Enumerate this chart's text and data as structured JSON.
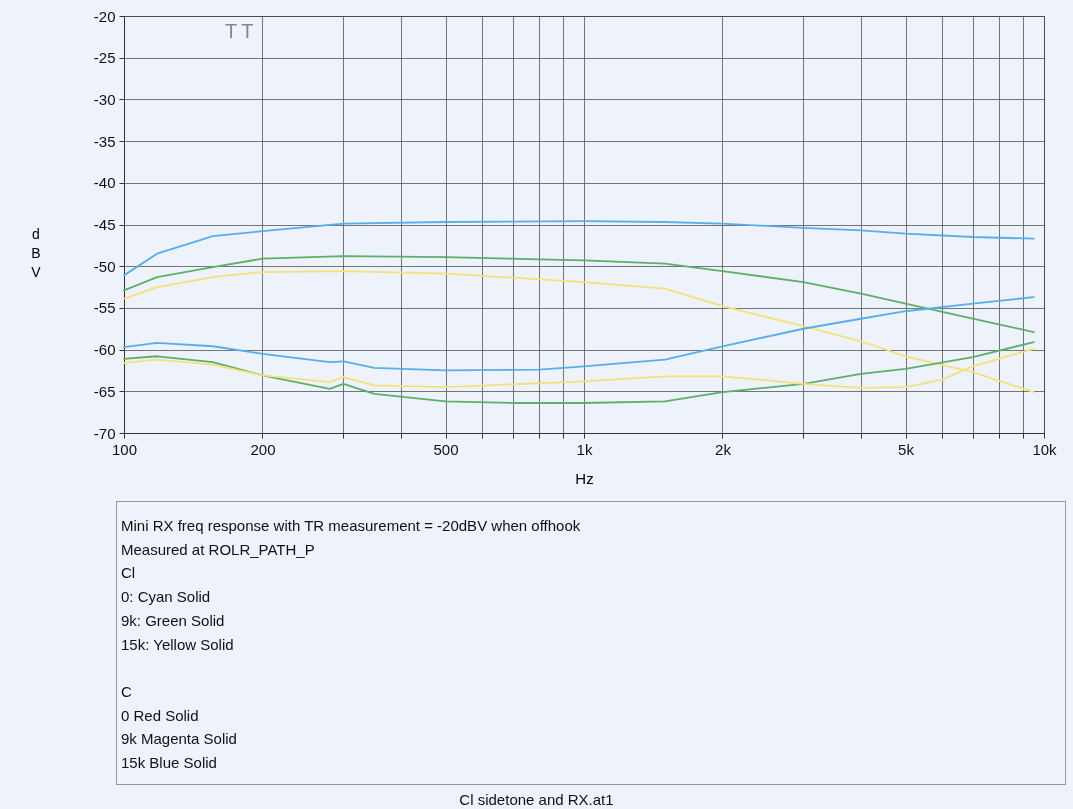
{
  "chart_data": {
    "type": "line",
    "xlabel": "Hz",
    "ylabel": "dBV",
    "log": "x",
    "grid": true,
    "legend": false,
    "xlim": [
      100,
      10000
    ],
    "ylim": [
      -70,
      -20
    ],
    "xticks": [
      100,
      200,
      {
        "value": 300,
        "label": null
      },
      {
        "value": 400,
        "label": null
      },
      500,
      {
        "value": 600,
        "label": null
      },
      {
        "value": 700,
        "label": null
      },
      {
        "value": 800,
        "label": null
      },
      {
        "value": 900,
        "label": null
      },
      {
        "value": 1000,
        "label": "1k"
      },
      {
        "value": 2000,
        "label": "2k"
      },
      {
        "value": 3000,
        "label": null
      },
      {
        "value": 4000,
        "label": null
      },
      {
        "value": 5000,
        "label": "5k"
      },
      {
        "value": 6000,
        "label": null
      },
      {
        "value": 7000,
        "label": null
      },
      {
        "value": 8000,
        "label": null
      },
      {
        "value": 9000,
        "label": null
      },
      {
        "value": 10000,
        "label": "10k"
      }
    ],
    "yticks": [
      -70,
      -65,
      -60,
      -55,
      -50,
      -45,
      -40,
      -35,
      -30,
      -25,
      -20
    ],
    "x": [
      100,
      118,
      156,
      200,
      300,
      500,
      1000,
      1500,
      2000,
      3000,
      4000,
      5000,
      7000,
      9500
    ],
    "series": [
      {
        "color": "#5aaee8",
        "values": [
          -51.1,
          -48.5,
          -46.4,
          -45.8,
          -44.9,
          -44.7,
          -44.6,
          -44.7,
          -44.9,
          -45.4,
          -45.7,
          -46.1,
          -46.5,
          -46.7
        ]
      },
      {
        "color": "#5fae6a",
        "values": [
          -52.9,
          -51.3,
          -50.1,
          -49.1,
          -48.8,
          -48.9,
          -49.3,
          -49.7,
          -50.6,
          -51.9,
          -53.3,
          -54.5,
          -56.3,
          -57.9
        ]
      },
      {
        "color": "#f2e27a",
        "values": [
          -53.9,
          -52.5,
          -51.3,
          -50.7,
          -50.6,
          -50.9,
          -51.9,
          -52.7,
          -54.8,
          -57.2,
          -59,
          -60.8,
          -62.7,
          -65.1
        ]
      },
      {
        "color": "#5aaee8",
        "x": [
          100,
          118,
          156,
          200,
          280,
          300,
          350,
          500,
          800,
          1000,
          1500,
          2000,
          3000,
          4000,
          5000,
          7000,
          9500
        ],
        "values": [
          -59.7,
          -59.2,
          -59.6,
          -60.5,
          -61.5,
          -61.4,
          -62.2,
          -62.5,
          -62.4,
          -62,
          -61.2,
          -59.6,
          -57.5,
          -56.3,
          -55.4,
          -54.5,
          -53.7
        ]
      },
      {
        "color": "#5fae6a",
        "x": [
          100,
          118,
          156,
          200,
          280,
          300,
          350,
          500,
          700,
          1000,
          1500,
          2000,
          3000,
          4000,
          5000,
          7000,
          9500
        ],
        "values": [
          -61.1,
          -60.8,
          -61.5,
          -63.1,
          -64.7,
          -64.1,
          -65.3,
          -66.2,
          -66.4,
          -66.4,
          -66.2,
          -65.1,
          -64.1,
          -62.9,
          -62.3,
          -60.9,
          -59.1
        ]
      },
      {
        "color": "#f2e27a",
        "x": [
          100,
          118,
          156,
          200,
          280,
          300,
          350,
          500,
          1000,
          1500,
          2000,
          3000,
          4000,
          5000,
          6000,
          7000,
          9500
        ],
        "values": [
          -61.6,
          -61.2,
          -61.8,
          -63.1,
          -63.9,
          -63.3,
          -64.3,
          -64.5,
          -63.8,
          -63.2,
          -63.2,
          -64.1,
          -64.6,
          -64.5,
          -63.6,
          -62,
          -59.9
        ]
      }
    ],
    "annotations": [
      "TT",
      "Mini RX freq response with TR measurement = -20dBV when offhook",
      "Measured at ROLR_PATH_P",
      "Cl",
      "0:  Cyan Solid",
      "9k:  Green Solid",
      "15k: Yellow Solid",
      "C",
      "0 Red Solid",
      "9k Magenta Solid",
      "15k Blue Solid",
      "Cl sidetone and RX.at1"
    ]
  }
}
